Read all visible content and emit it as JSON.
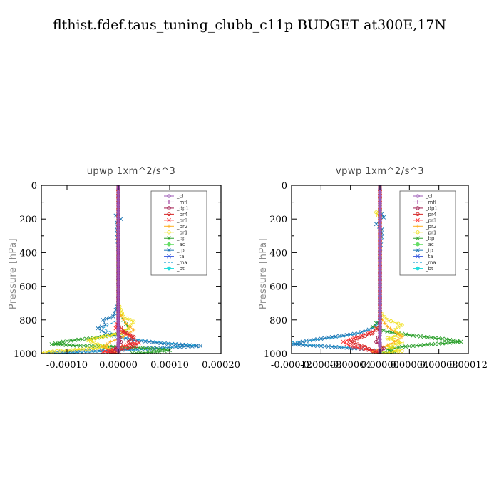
{
  "title": "flthist.fdef.taus_tuning_clubb_c11p  BUDGET at300E,17N",
  "colors": {
    "_cl": "#9b59b6",
    "_mfl": "#800080",
    "_dp1": "#a0184c",
    "_pr4": "#d62728",
    "_pr3": "#ff3333",
    "_pr2": "#ffb020",
    "_pr1": "#f0e020",
    "_bp": "#2ca02c",
    "_ac": "#66dd66",
    "_tp": "#1f77b4",
    "_ta": "#3355dd",
    "_ma": "#1a9fd4",
    "_bt": "#22dddd"
  },
  "chart_data": [
    {
      "type": "line",
      "title": "upwp   1xm^2/s^3",
      "xlabel": "",
      "ylabel": "Pressure [hPa]",
      "xlim": [
        -0.00015,
        0.0002
      ],
      "ylim": [
        1000,
        0
      ],
      "xticks": [
        "-0.00010",
        "0.00000",
        "0.00010",
        "0.00020"
      ],
      "xtick_values": [
        -0.0001,
        0,
        0.0001,
        0.0002
      ],
      "yticks": [
        "0",
        "200",
        "400",
        "600",
        "800",
        "1000"
      ],
      "ytick_values": [
        0,
        200,
        400,
        600,
        800,
        1000
      ],
      "legend": [
        "_cl",
        "_mfl",
        "_dp1",
        "_pr4",
        "_pr3",
        "_pr2",
        "_pr1",
        "_bp",
        "_ac",
        "_tp",
        "_ta",
        "_ma",
        "_bt"
      ],
      "legend_position": "top-right",
      "series": [
        {
          "name": "_tp",
          "marker": "x",
          "points": [
            [
              0,
              0
            ],
            [
              0,
              150
            ],
            [
              -5e-06,
              180
            ],
            [
              5e-06,
              200
            ],
            [
              -3e-06,
              220
            ],
            [
              0,
              400
            ],
            [
              0,
              700
            ],
            [
              -1e-05,
              780
            ],
            [
              -3e-05,
              800
            ],
            [
              -2.5e-05,
              830
            ],
            [
              -4e-05,
              850
            ],
            [
              -2.5e-05,
              880
            ],
            [
              0,
              900
            ],
            [
              3e-05,
              920
            ],
            [
              9e-05,
              940
            ],
            [
              0.00016,
              955
            ],
            [
              0.00012,
              960
            ],
            [
              3e-05,
              975
            ],
            [
              -6e-05,
              985
            ],
            [
              -0.00014,
              995
            ]
          ]
        },
        {
          "name": "_ma",
          "marker": "none",
          "points": [
            [
              0,
              0
            ],
            [
              0,
              800
            ],
            [
              -2e-05,
              830
            ],
            [
              -3e-05,
              850
            ],
            [
              -1e-05,
              880
            ],
            [
              2e-05,
              910
            ],
            [
              9e-05,
              935
            ],
            [
              0.00015,
              950
            ],
            [
              0.0001,
              965
            ],
            [
              3e-05,
              980
            ],
            [
              -4e-05,
              990
            ],
            [
              -0.00014,
              1000
            ]
          ]
        },
        {
          "name": "_bp",
          "marker": "x",
          "points": [
            [
              0,
              0
            ],
            [
              0,
              750
            ],
            [
              1e-05,
              800
            ],
            [
              2e-05,
              850
            ],
            [
              5e-06,
              880
            ],
            [
              -4e-05,
              905
            ],
            [
              -0.0001,
              925
            ],
            [
              -0.00013,
              945
            ],
            [
              -6e-05,
              955
            ],
            [
              4e-05,
              965
            ],
            [
              0.0001,
              980
            ],
            [
              8e-05,
              990
            ],
            [
              2e-05,
              1000
            ]
          ]
        },
        {
          "name": "_pr1",
          "marker": "o",
          "points": [
            [
              0,
              0
            ],
            [
              0,
              700
            ],
            [
              1e-05,
              780
            ],
            [
              3e-05,
              810
            ],
            [
              2e-05,
              850
            ],
            [
              5e-06,
              880
            ],
            [
              -3e-05,
              900
            ],
            [
              -6e-05,
              920
            ],
            [
              -4e-05,
              945
            ],
            [
              -2e-05,
              960
            ],
            [
              -7e-05,
              975
            ],
            [
              -0.00012,
              985
            ],
            [
              -0.00015,
              995
            ]
          ]
        },
        {
          "name": "_pr2",
          "marker": "+",
          "points": [
            [
              0,
              0
            ],
            [
              0,
              750
            ],
            [
              1.5e-05,
              820
            ],
            [
              3e-05,
              860
            ],
            [
              1e-05,
              900
            ],
            [
              -1.5e-05,
              930
            ],
            [
              -3e-05,
              960
            ],
            [
              -1e-05,
              985
            ],
            [
              0,
              1000
            ]
          ]
        },
        {
          "name": "_pr3",
          "marker": "x",
          "points": [
            [
              0,
              0
            ],
            [
              0,
              800
            ],
            [
              -5e-06,
              850
            ],
            [
              1.5e-05,
              880
            ],
            [
              3e-05,
              910
            ],
            [
              4e-05,
              935
            ],
            [
              1e-05,
              955
            ],
            [
              -1e-05,
              975
            ],
            [
              -3e-05,
              990
            ],
            [
              0,
              1000
            ]
          ]
        },
        {
          "name": "_pr4",
          "marker": "o",
          "points": [
            [
              0,
              0
            ],
            [
              0,
              820
            ],
            [
              1e-05,
              870
            ],
            [
              3e-05,
              900
            ],
            [
              2e-05,
              930
            ],
            [
              3.5e-05,
              955
            ],
            [
              1e-05,
              975
            ],
            [
              -1.5e-05,
              990
            ],
            [
              0,
              1000
            ]
          ]
        },
        {
          "name": "_dp1",
          "marker": "o",
          "points": [
            [
              0,
              0
            ],
            [
              0,
              880
            ],
            [
              5e-06,
              930
            ],
            [
              -5e-06,
              970
            ],
            [
              5e-06,
              1000
            ]
          ]
        },
        {
          "name": "_mfl",
          "marker": "+",
          "points": [
            [
              0,
              0
            ],
            [
              0,
              1000
            ]
          ]
        },
        {
          "name": "_cl",
          "marker": "o",
          "points": [
            [
              0,
              0
            ],
            [
              0,
              1000
            ]
          ]
        }
      ]
    },
    {
      "type": "line",
      "title": "vpwp   1xm^2/s^3",
      "xlabel": "",
      "ylabel": "Pressure [hPa]",
      "xlim": [
        -0.00012,
        0.00012
      ],
      "ylim": [
        1000,
        0
      ],
      "xticks": [
        "-0.00012",
        "-0.00008",
        "-0.00004",
        "0.00000",
        "0.00004",
        "0.00008",
        "0.00012"
      ],
      "xtick_values": [
        -0.00012,
        -8e-05,
        -4e-05,
        0,
        4e-05,
        8e-05,
        0.00012
      ],
      "yticks": [
        "0",
        "200",
        "400",
        "600",
        "800",
        "1000"
      ],
      "ytick_values": [
        0,
        200,
        400,
        600,
        800,
        1000
      ],
      "legend": [
        "_cl",
        "_mfl",
        "_dp1",
        "_pr4",
        "_pr3",
        "_pr2",
        "_pr1",
        "_bp",
        "_ac",
        "_tp",
        "_ta",
        "_ma",
        "_bt"
      ],
      "legend_position": "top-right",
      "series": [
        {
          "name": "_tp",
          "marker": "x",
          "points": [
            [
              0,
              0
            ],
            [
              0,
              150
            ],
            [
              5e-06,
              190
            ],
            [
              -5e-06,
              230
            ],
            [
              3e-06,
              260
            ],
            [
              0,
              400
            ],
            [
              0,
              800
            ],
            [
              -1e-05,
              850
            ],
            [
              -3e-05,
              880
            ],
            [
              -7e-05,
              905
            ],
            [
              -0.0001,
              925
            ],
            [
              -0.00012,
              945
            ],
            [
              -8e-05,
              955
            ],
            [
              -3e-05,
              970
            ],
            [
              0,
              985
            ],
            [
              0,
              1000
            ]
          ]
        },
        {
          "name": "_ma",
          "marker": "none",
          "points": [
            [
              0,
              0
            ],
            [
              0,
              820
            ],
            [
              -2e-05,
              870
            ],
            [
              -5e-05,
              900
            ],
            [
              -9e-05,
              920
            ],
            [
              -0.00013,
              935
            ],
            [
              -9e-05,
              950
            ],
            [
              -4e-05,
              965
            ],
            [
              0,
              980
            ],
            [
              0,
              1000
            ]
          ]
        },
        {
          "name": "_bp",
          "marker": "x",
          "points": [
            [
              0,
              0
            ],
            [
              0,
              800
            ],
            [
              -1e-05,
              840
            ],
            [
              1e-05,
              870
            ],
            [
              4e-05,
              890
            ],
            [
              9e-05,
              915
            ],
            [
              0.00011,
              930
            ],
            [
              7e-05,
              945
            ],
            [
              3e-05,
              960
            ],
            [
              1e-05,
              975
            ],
            [
              2e-05,
              990
            ],
            [
              0,
              1000
            ]
          ]
        },
        {
          "name": "_pr1",
          "marker": "o",
          "points": [
            [
              0,
              0
            ],
            [
              0,
              150
            ],
            [
              -5e-06,
              160
            ],
            [
              0,
              200
            ],
            [
              0,
              750
            ],
            [
              1e-05,
              800
            ],
            [
              3e-05,
              830
            ],
            [
              2e-05,
              860
            ],
            [
              3e-05,
              890
            ],
            [
              1e-05,
              910
            ],
            [
              3e-05,
              935
            ],
            [
              1e-05,
              960
            ],
            [
              3e-05,
              985
            ],
            [
              0,
              1000
            ]
          ]
        },
        {
          "name": "_pr2",
          "marker": "+",
          "points": [
            [
              0,
              0
            ],
            [
              0,
              780
            ],
            [
              1e-05,
              840
            ],
            [
              3e-05,
              900
            ],
            [
              2e-05,
              930
            ],
            [
              5e-06,
              960
            ],
            [
              -1e-05,
              990
            ],
            [
              0,
              1000
            ]
          ]
        },
        {
          "name": "_pr3",
          "marker": "x",
          "points": [
            [
              0,
              0
            ],
            [
              0,
              830
            ],
            [
              -1e-05,
              870
            ],
            [
              -3e-05,
              900
            ],
            [
              -5e-05,
              930
            ],
            [
              -4e-05,
              955
            ],
            [
              -2e-05,
              975
            ],
            [
              0,
              990
            ],
            [
              0,
              1000
            ]
          ]
        },
        {
          "name": "_pr4",
          "marker": "o",
          "points": [
            [
              0,
              0
            ],
            [
              0,
              840
            ],
            [
              -1e-05,
              880
            ],
            [
              -3e-05,
              910
            ],
            [
              -4e-05,
              930
            ],
            [
              -2e-05,
              960
            ],
            [
              -1e-05,
              985
            ],
            [
              0,
              1000
            ]
          ]
        },
        {
          "name": "_dp1",
          "marker": "o",
          "points": [
            [
              0,
              0
            ],
            [
              0,
              880
            ],
            [
              -5e-06,
              930
            ],
            [
              5e-06,
              970
            ],
            [
              0,
              1000
            ]
          ]
        },
        {
          "name": "_mfl",
          "marker": "+",
          "points": [
            [
              0,
              0
            ],
            [
              0,
              1000
            ]
          ]
        },
        {
          "name": "_cl",
          "marker": "o",
          "points": [
            [
              0,
              0
            ],
            [
              0,
              1000
            ]
          ]
        }
      ]
    }
  ]
}
